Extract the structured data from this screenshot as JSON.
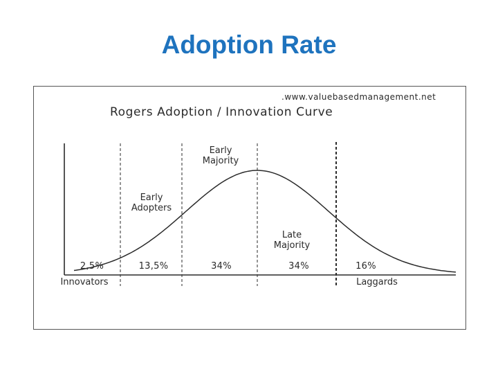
{
  "title": "Adoption Rate",
  "diagram": {
    "source": ".www.valuebasedmanagement.net",
    "heading": "Rogers Adoption / Innovation Curve",
    "segments": [
      {
        "name": "Innovators",
        "share": "2,5%"
      },
      {
        "name": "Early Adopters",
        "name_lines": [
          "Early",
          "Adopters"
        ],
        "share": "13,5%"
      },
      {
        "name": "Early Majority",
        "name_lines": [
          "Early",
          "Majority"
        ],
        "share": "34%"
      },
      {
        "name": "Late Majority",
        "name_lines": [
          "Late",
          "Majority"
        ],
        "share": "34%"
      },
      {
        "name": "Laggards",
        "share": "16%"
      }
    ],
    "colors": {
      "title": "#1e73be",
      "line": "#2a2a2a"
    }
  }
}
